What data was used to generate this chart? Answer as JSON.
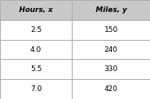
{
  "col1_header": "Hours, x",
  "col2_header": "Miles, y",
  "rows": [
    [
      "2.5",
      "150"
    ],
    [
      "4.0",
      "240"
    ],
    [
      "5.5",
      "330"
    ],
    [
      "7.0",
      "420"
    ]
  ],
  "header_bg": "#c8c8c8",
  "row_bg": "#ffffff",
  "border_color": "#aaaaaa",
  "header_fontsize": 6.5,
  "cell_fontsize": 6.5,
  "header_font_weight": "bold",
  "text_color": "#000000",
  "fig_width": 1.88,
  "fig_height": 1.24,
  "dpi": 100
}
